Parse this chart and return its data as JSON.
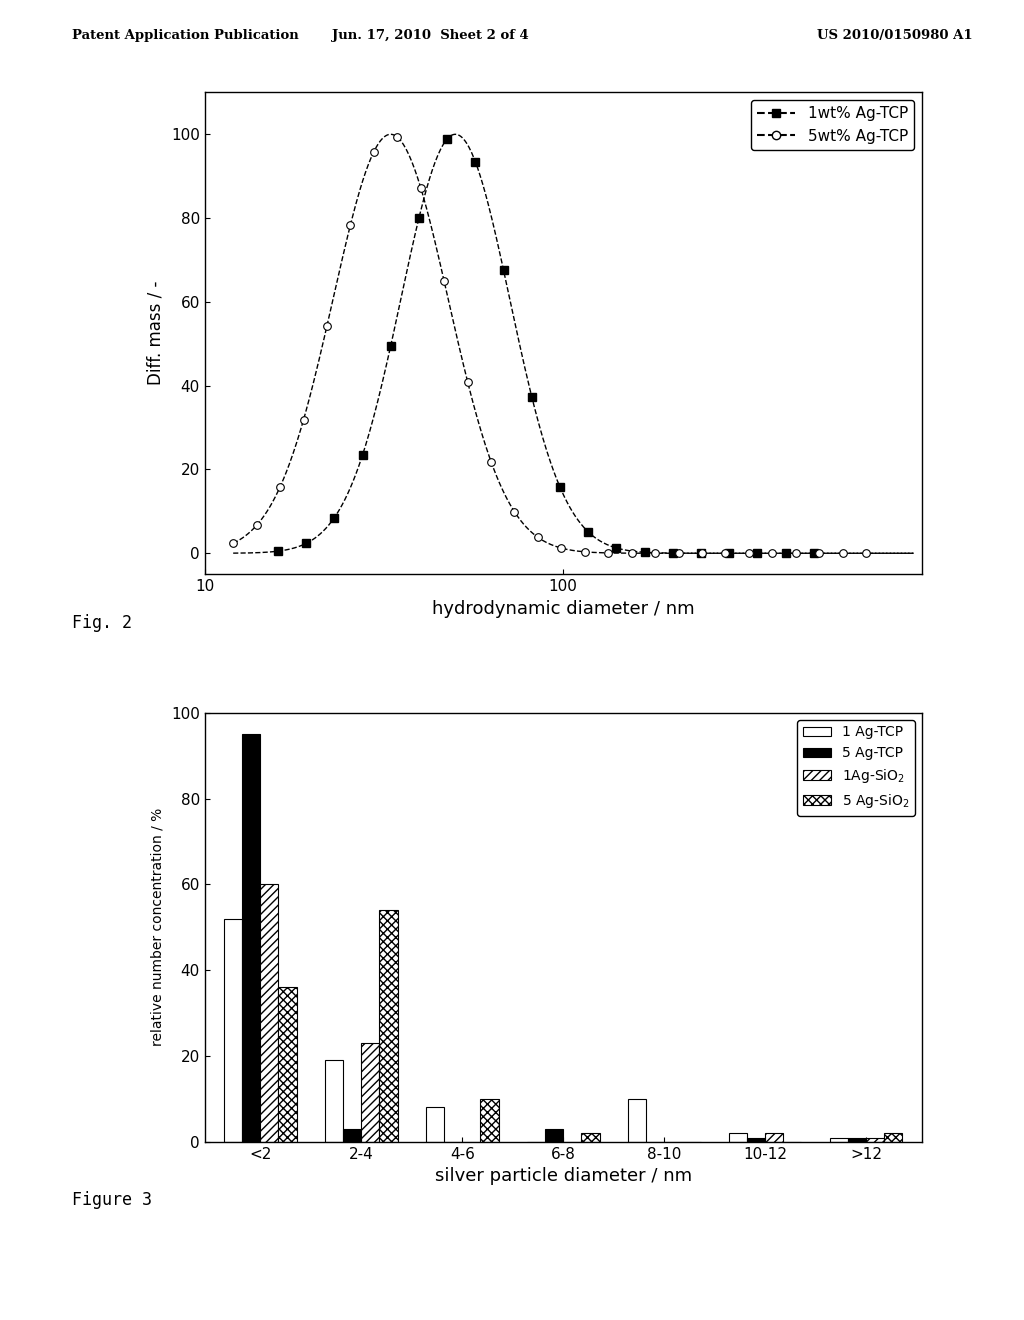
{
  "fig2": {
    "xlabel": "hydrodynamic diameter / nm",
    "ylabel": "Diff. mass / -",
    "xlim_left": 10,
    "xlim_right": 1000,
    "ylim_bottom": -5,
    "ylim_top": 110,
    "yticks": [
      0,
      20,
      40,
      60,
      80,
      100
    ],
    "series1_label": "1wt% Ag-TCP",
    "series2_label": "5wt% Ag-TCP",
    "series1_mu": 50,
    "series1_sigma": 0.35,
    "series2_mu": 33,
    "series2_sigma": 0.37
  },
  "fig3": {
    "xlabel": "silver particle diameter / nm",
    "ylabel": "relative number concentration / %",
    "ylim_top": 100,
    "yticks": [
      0,
      20,
      40,
      60,
      80,
      100
    ],
    "categories": [
      "<2",
      "2-4",
      "4-6",
      "6-8",
      "8-10",
      "10-12",
      ">12"
    ],
    "s1": [
      52,
      19,
      8,
      0,
      10,
      2,
      1
    ],
    "s2": [
      95,
      3,
      0,
      3,
      0,
      1,
      1
    ],
    "s3": [
      60,
      23,
      0,
      0,
      0,
      2,
      1
    ],
    "s4": [
      36,
      54,
      10,
      2,
      0,
      0,
      2
    ]
  },
  "header_left": "Patent Application Publication",
  "header_center": "Jun. 17, 2010  Sheet 2 of 4",
  "header_right": "US 2010/0150980 A1",
  "fig2_label": "Fig. 2",
  "fig3_label": "Figure 3",
  "bg_color": "#ffffff"
}
